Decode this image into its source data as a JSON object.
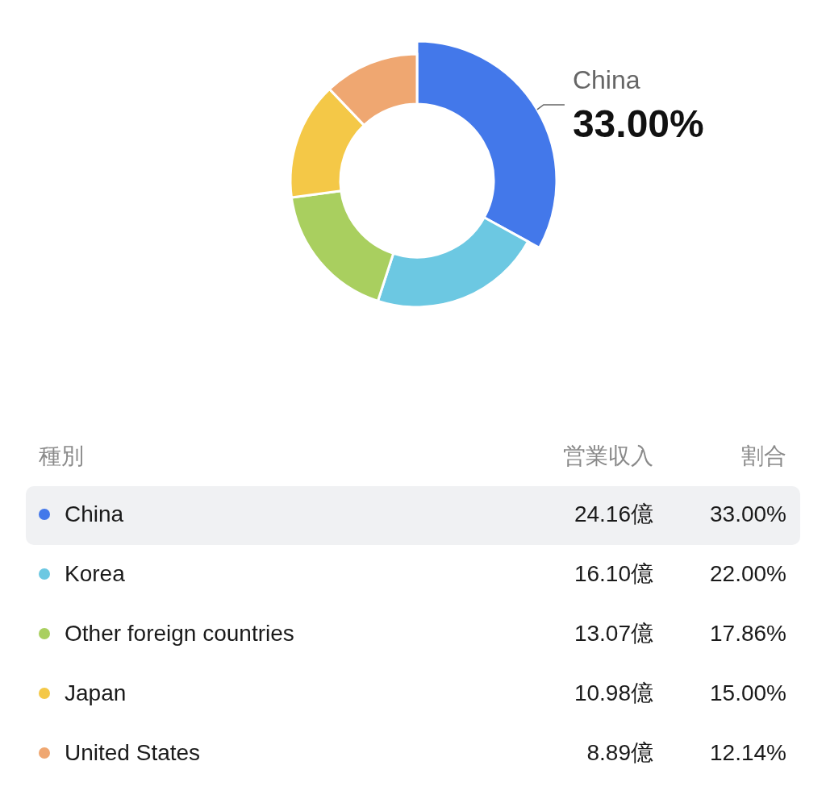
{
  "chart_data": {
    "type": "donut",
    "categories": [
      "China",
      "Korea",
      "Other foreign countries",
      "Japan",
      "United States"
    ],
    "values": [
      24.16,
      16.1,
      13.07,
      10.98,
      8.89
    ],
    "colors": [
      "#4378ea",
      "#6cc8e2",
      "#a9cf5f",
      "#f4c847",
      "#efa771"
    ],
    "value_labels": [
      "24.16億",
      "16.10億",
      "13.07億",
      "10.98億",
      "8.89億"
    ],
    "legend": "bottom",
    "annotations": [
      "種別",
      "営業収入",
      "割合",
      {
        "text": "33.00%",
        "x": "China"
      },
      {
        "text": "22.00%",
        "x": "Korea"
      },
      {
        "text": "17.86%",
        "x": "Other foreign countries"
      },
      {
        "text": "15.00%",
        "x": "Japan"
      },
      {
        "text": "12.14%",
        "x": "United States"
      }
    ]
  }
}
